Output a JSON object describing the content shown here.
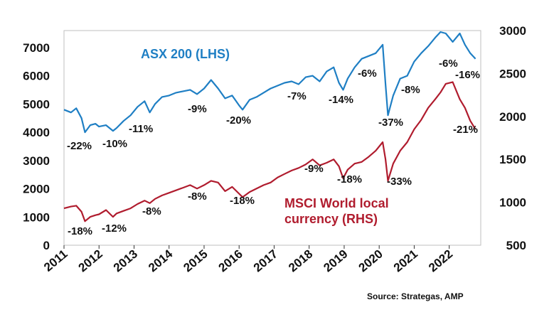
{
  "colors": {
    "asx": "#1f7fc4",
    "msci": "#b01c2e",
    "axis": "#111111",
    "frame": "#bfbfbf"
  },
  "chart_data": {
    "type": "line",
    "title": "",
    "source": "Source: Strategas, AMP",
    "x_ticks": [
      "2011",
      "2012",
      "2013",
      "2014",
      "2015",
      "2016",
      "2017",
      "2018",
      "2019",
      "2020",
      "2021",
      "2022"
    ],
    "xlim": [
      2011,
      2022.9
    ],
    "left_axis": {
      "ylim": [
        0,
        7600
      ],
      "ticks": [
        0,
        1000,
        2000,
        3000,
        4000,
        5000,
        6000,
        7000
      ]
    },
    "right_axis": {
      "ylim": [
        500,
        3000
      ],
      "ticks": [
        500,
        1000,
        1500,
        2000,
        2500,
        3000
      ]
    },
    "series": [
      {
        "name": "ASX 200 (LHS)",
        "axis": "left",
        "x": [
          2011.0,
          2011.2,
          2011.35,
          2011.5,
          2011.6,
          2011.75,
          2011.9,
          2012.0,
          2012.2,
          2012.4,
          2012.5,
          2012.7,
          2012.9,
          2013.1,
          2013.3,
          2013.45,
          2013.6,
          2013.8,
          2014.0,
          2014.2,
          2014.4,
          2014.6,
          2014.8,
          2015.0,
          2015.2,
          2015.4,
          2015.6,
          2015.8,
          2016.0,
          2016.1,
          2016.3,
          2016.5,
          2016.7,
          2016.9,
          2017.1,
          2017.3,
          2017.5,
          2017.7,
          2017.9,
          2018.1,
          2018.3,
          2018.5,
          2018.7,
          2018.85,
          2018.97,
          2019.1,
          2019.3,
          2019.5,
          2019.7,
          2019.9,
          2020.1,
          2020.18,
          2020.25,
          2020.4,
          2020.6,
          2020.8,
          2021.0,
          2021.2,
          2021.4,
          2021.6,
          2021.75,
          2021.9,
          2022.1,
          2022.3,
          2022.45,
          2022.6,
          2022.75
        ],
        "y": [
          4800,
          4700,
          4850,
          4500,
          4000,
          4250,
          4300,
          4200,
          4250,
          4050,
          4150,
          4400,
          4600,
          4900,
          5100,
          4700,
          5000,
          5250,
          5300,
          5400,
          5450,
          5500,
          5350,
          5550,
          5850,
          5550,
          5200,
          5300,
          4950,
          4800,
          5150,
          5250,
          5400,
          5550,
          5650,
          5750,
          5800,
          5700,
          5950,
          6000,
          5800,
          6150,
          6300,
          5750,
          5500,
          5900,
          6300,
          6600,
          6700,
          6800,
          7100,
          5700,
          4600,
          5300,
          5900,
          6000,
          6500,
          6800,
          7050,
          7350,
          7550,
          7500,
          7200,
          7500,
          7100,
          6800,
          6600
        ]
      },
      {
        "name": "MSCI World local currency (RHS)",
        "axis": "right",
        "x": [
          2011.0,
          2011.2,
          2011.35,
          2011.5,
          2011.6,
          2011.75,
          2011.9,
          2012.0,
          2012.2,
          2012.4,
          2012.5,
          2012.7,
          2012.9,
          2013.1,
          2013.3,
          2013.45,
          2013.6,
          2013.8,
          2014.0,
          2014.2,
          2014.4,
          2014.6,
          2014.8,
          2015.0,
          2015.2,
          2015.4,
          2015.6,
          2015.8,
          2016.0,
          2016.1,
          2016.3,
          2016.5,
          2016.7,
          2016.9,
          2017.1,
          2017.3,
          2017.5,
          2017.7,
          2017.9,
          2018.1,
          2018.3,
          2018.5,
          2018.7,
          2018.85,
          2018.97,
          2019.1,
          2019.3,
          2019.5,
          2019.7,
          2019.9,
          2020.1,
          2020.18,
          2020.25,
          2020.4,
          2020.6,
          2020.8,
          2021.0,
          2021.2,
          2021.4,
          2021.6,
          2021.75,
          2021.9,
          2022.1,
          2022.3,
          2022.45,
          2022.6,
          2022.75
        ],
        "y": [
          930,
          950,
          960,
          890,
          780,
          830,
          850,
          860,
          910,
          830,
          870,
          900,
          930,
          980,
          1020,
          990,
          1040,
          1080,
          1110,
          1140,
          1170,
          1200,
          1160,
          1200,
          1250,
          1230,
          1130,
          1180,
          1100,
          1060,
          1120,
          1160,
          1200,
          1230,
          1290,
          1330,
          1370,
          1400,
          1440,
          1500,
          1430,
          1460,
          1500,
          1420,
          1280,
          1380,
          1450,
          1470,
          1530,
          1600,
          1700,
          1500,
          1250,
          1450,
          1600,
          1700,
          1850,
          1960,
          2100,
          2200,
          2280,
          2380,
          2400,
          2200,
          2100,
          1950,
          1850
        ]
      }
    ],
    "drawdowns_asx": [
      "-22%",
      "-10%",
      "-11%",
      "-9%",
      "-20%",
      "-7%",
      "-14%",
      "-6%",
      "-37%",
      "-8%",
      "-6%",
      "-16%"
    ],
    "drawdowns_msci": [
      "-18%",
      "-12%",
      "-8%",
      "-8%",
      "-18%",
      "-9%",
      "-18%",
      "-33%",
      "-21%"
    ],
    "legend": [
      "ASX 200 (LHS)",
      "MSCI World local",
      "currency (RHS)"
    ]
  }
}
